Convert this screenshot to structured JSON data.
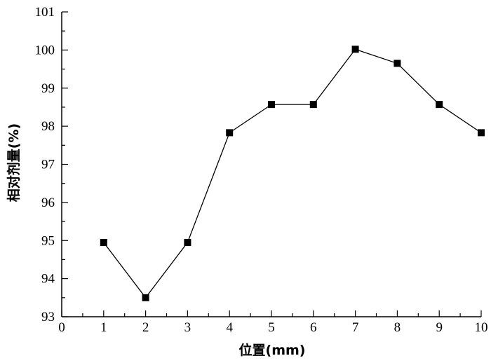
{
  "chart_data": {
    "type": "line",
    "title": "",
    "xlabel": "位置(mm)",
    "ylabel": "相对剂量(%)",
    "xlim": [
      0,
      10
    ],
    "ylim": [
      93,
      101
    ],
    "xticks": [
      "0",
      "1",
      "2",
      "3",
      "4",
      "5",
      "6",
      "7",
      "8",
      "9",
      "10"
    ],
    "yticks": [
      "93",
      "94",
      "95",
      "96",
      "97",
      "98",
      "99",
      "100",
      "101"
    ],
    "grid": false,
    "marker": "square",
    "line_color": "#000000",
    "series": [
      {
        "x": [
          1,
          2,
          3,
          4,
          5,
          6,
          7,
          8,
          9,
          10
        ],
        "values": [
          94.95,
          93.5,
          94.95,
          97.83,
          98.57,
          98.57,
          100.02,
          99.65,
          98.57,
          97.83
        ]
      }
    ]
  }
}
